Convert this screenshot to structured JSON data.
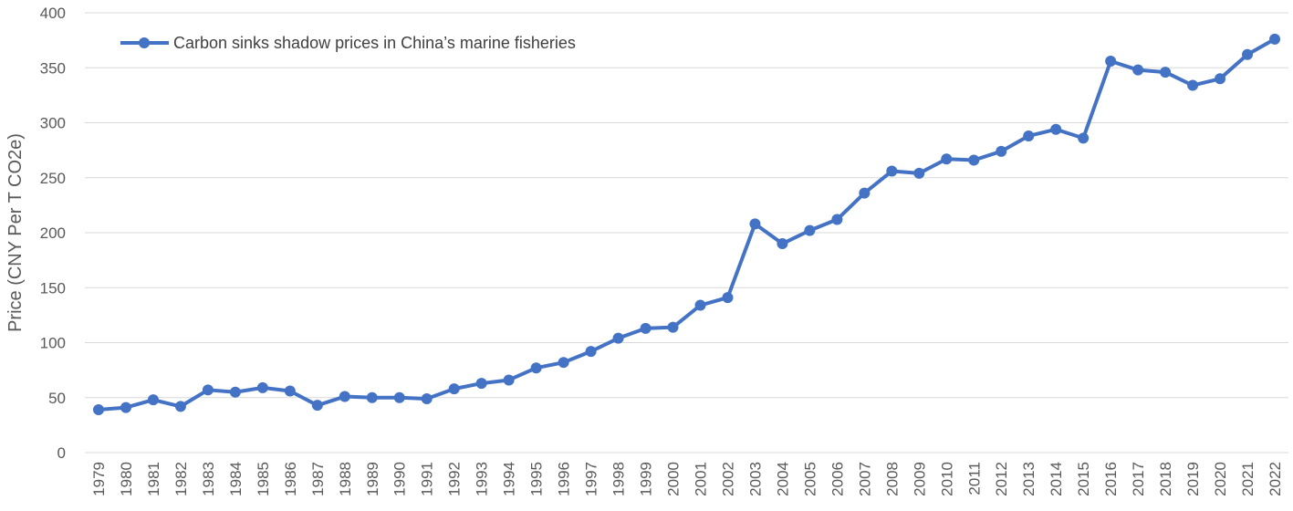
{
  "chart_data": {
    "type": "line",
    "title": "",
    "xlabel": "",
    "ylabel": "Price (CNY Per T CO2e)",
    "ylim": [
      0,
      400
    ],
    "yticks": [
      0,
      50,
      100,
      150,
      200,
      250,
      300,
      350,
      400
    ],
    "grid": true,
    "legend_position": "top-left",
    "categories": [
      "1979",
      "1980",
      "1981",
      "1982",
      "1983",
      "1984",
      "1985",
      "1986",
      "1987",
      "1988",
      "1989",
      "1990",
      "1991",
      "1992",
      "1993",
      "1994",
      "1995",
      "1996",
      "1997",
      "1998",
      "1999",
      "2000",
      "2001",
      "2002",
      "2003",
      "2004",
      "2005",
      "2006",
      "2007",
      "2008",
      "2009",
      "2010",
      "2011",
      "2012",
      "2013",
      "2014",
      "2015",
      "2016",
      "2017",
      "2018",
      "2019",
      "2020",
      "2021",
      "2022"
    ],
    "series": [
      {
        "name": "Carbon sinks shadow prices in China’s marine fisheries",
        "color": "#4472c4",
        "values": [
          39,
          41,
          48,
          42,
          57,
          55,
          59,
          56,
          43,
          51,
          50,
          50,
          49,
          58,
          63,
          66,
          77,
          82,
          92,
          104,
          113,
          114,
          134,
          141,
          208,
          190,
          202,
          212,
          236,
          256,
          254,
          267,
          266,
          274,
          288,
          294,
          286,
          356,
          348,
          346,
          334,
          340,
          362,
          376
        ]
      }
    ]
  }
}
